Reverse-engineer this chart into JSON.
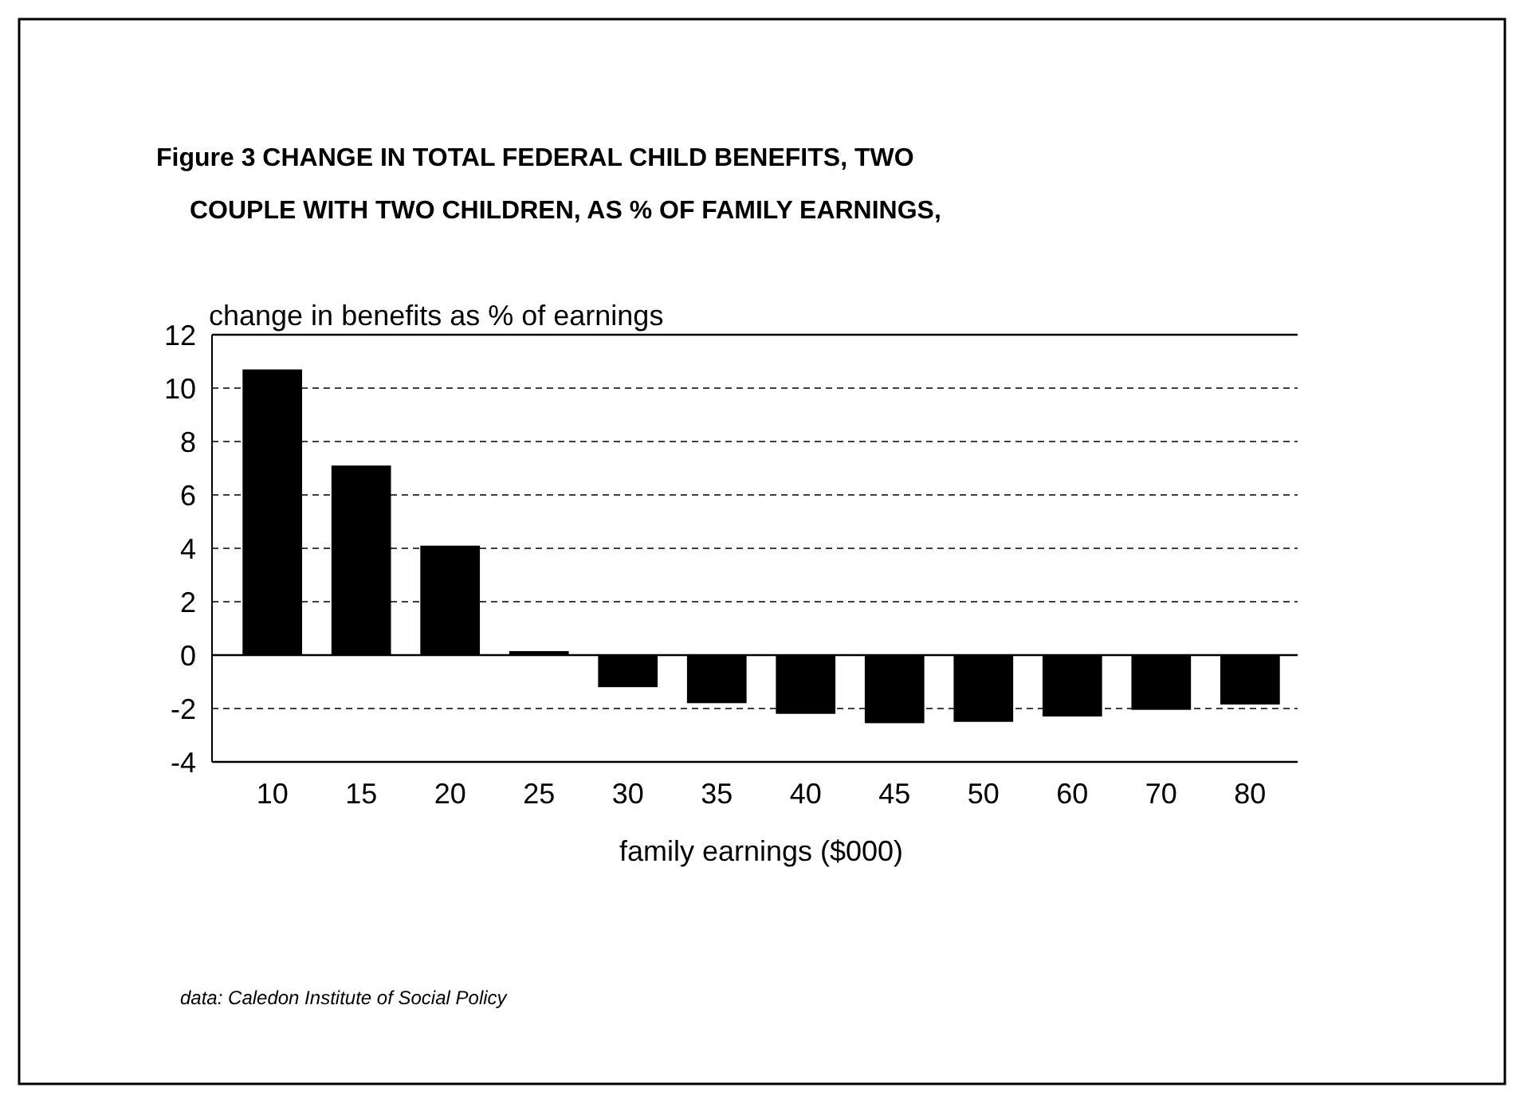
{
  "chart_data": {
    "type": "bar",
    "title": "Figure 3    CHANGE IN TOTAL FEDERAL CHILD BENEFITS, TWO",
    "subtitle": "COUPLE WITH TWO CHILDREN, AS % OF FAMILY EARNINGS,",
    "ylabel": "change in benefits as % of earnings",
    "xlabel": "family earnings ($000)",
    "categories": [
      "10",
      "15",
      "20",
      "25",
      "30",
      "35",
      "40",
      "45",
      "50",
      "60",
      "70",
      "80"
    ],
    "values": [
      10.7,
      7.1,
      4.1,
      0.15,
      -1.2,
      -1.8,
      -2.2,
      -2.55,
      -2.5,
      -2.3,
      -2.05,
      -1.85
    ],
    "color": "#000000",
    "ylim": [
      -4,
      12
    ],
    "yticks": [
      -4,
      -2,
      0,
      2,
      4,
      6,
      8,
      10,
      12
    ],
    "grid": "y",
    "annotations": [
      "data: Caledon Institute of Social Policy"
    ]
  }
}
